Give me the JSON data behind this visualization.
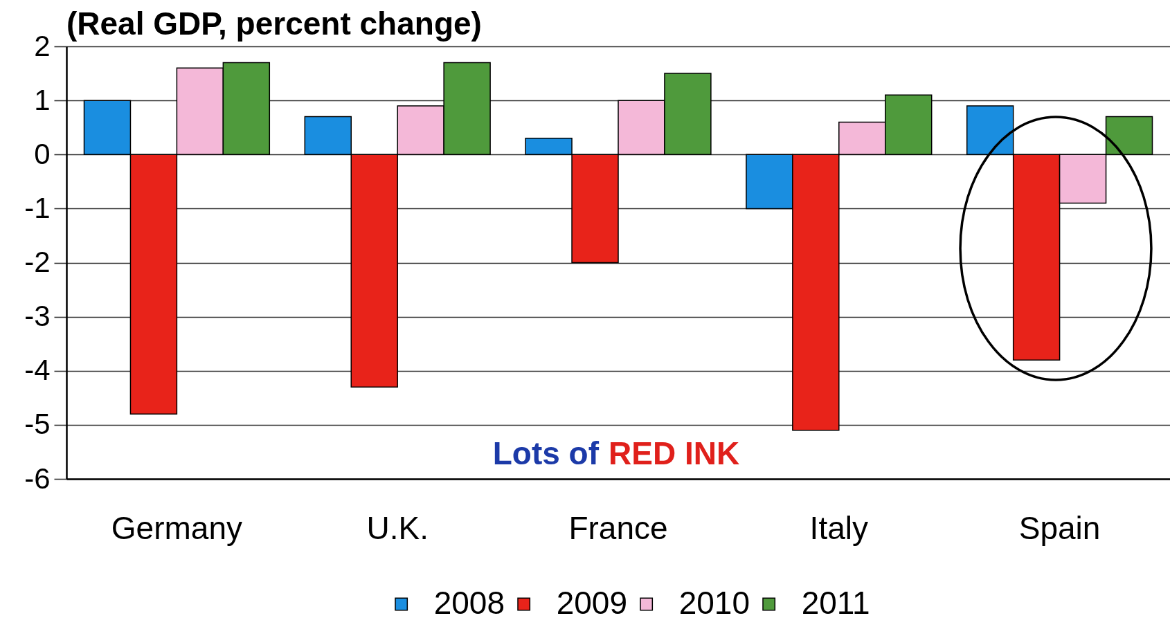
{
  "chart_data": {
    "type": "bar",
    "title": "(Real GDP, percent change)",
    "categories": [
      "Germany",
      "U.K.",
      "France",
      "Italy",
      "Spain"
    ],
    "series": [
      {
        "name": "2008",
        "color": "#1a8ee0",
        "values": [
          1.0,
          0.7,
          0.3,
          -1.0,
          0.9
        ]
      },
      {
        "name": "2009",
        "color": "#e8231a",
        "values": [
          -4.8,
          -4.3,
          -2.0,
          -5.1,
          -3.8
        ]
      },
      {
        "name": "2010",
        "color": "#f4b8d8",
        "values": [
          1.6,
          0.9,
          1.0,
          0.6,
          -0.9
        ]
      },
      {
        "name": "2011",
        "color": "#4f9a3c",
        "values": [
          1.7,
          1.7,
          1.5,
          1.1,
          0.7
        ]
      }
    ],
    "ylim": [
      -6,
      2
    ],
    "yticks": [
      -6,
      -5,
      -4,
      -3,
      -2,
      -1,
      0,
      1,
      2
    ],
    "grid": "y",
    "legend": "bottom",
    "annotations": [
      "Lots of",
      "RED INK"
    ]
  }
}
